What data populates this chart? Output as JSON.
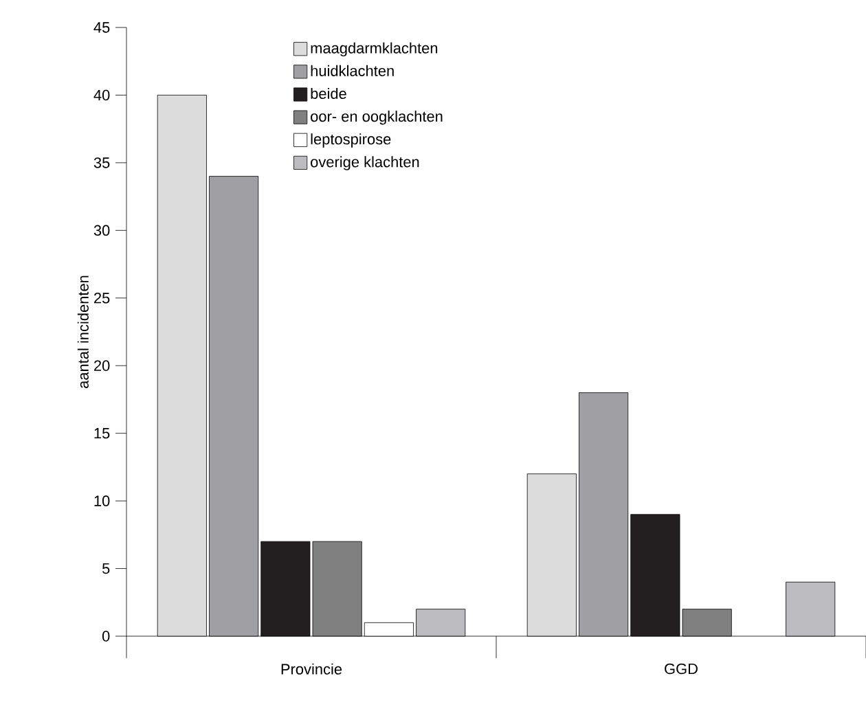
{
  "chart_data": {
    "type": "bar",
    "ylabel": "aantal incidenten",
    "categories": [
      "Provincie",
      "GGD"
    ],
    "series": [
      {
        "name": "maagdarmklachten",
        "color": "#dcdcdc",
        "values": [
          40,
          12
        ]
      },
      {
        "name": "huidklachten",
        "color": "#a0a0a4",
        "values": [
          34,
          18
        ]
      },
      {
        "name": "beide",
        "color": "#231f20",
        "values": [
          7,
          9
        ]
      },
      {
        "name": "oor- en oogklachten",
        "color": "#808080",
        "values": [
          7,
          2
        ]
      },
      {
        "name": "leptospirose",
        "color": "#ffffff",
        "values": [
          1,
          null
        ]
      },
      {
        "name": "overige klachten",
        "color": "#bcbcc0",
        "values": [
          2,
          4
        ]
      }
    ],
    "ylim": [
      0,
      45
    ],
    "yticks": [
      0,
      5,
      10,
      15,
      20,
      25,
      30,
      35,
      40,
      45
    ],
    "grid": false,
    "legend": "top"
  }
}
